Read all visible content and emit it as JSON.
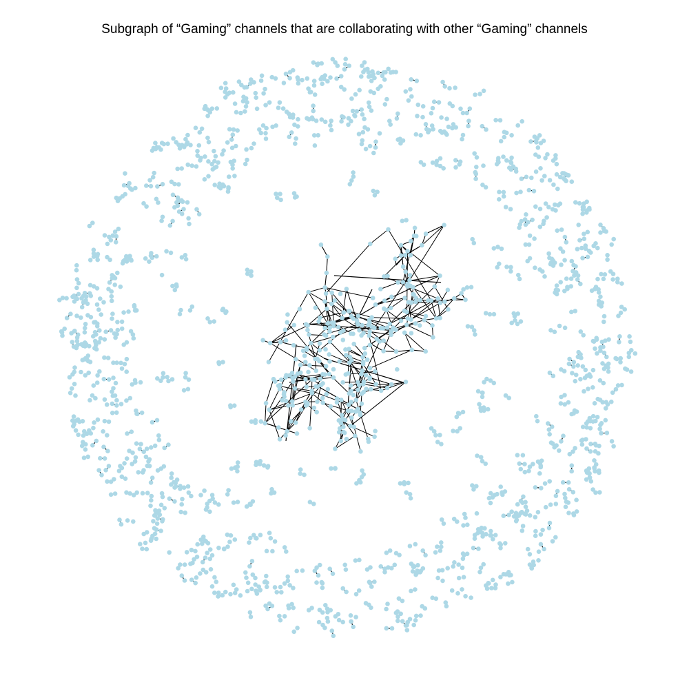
{
  "figure": {
    "title": "Subgraph of “Gaming” channels that are collaborating with other “Gaming” channels"
  },
  "style": {
    "node_color": "#add8e6",
    "edge_color": "#000000",
    "background": "#ffffff"
  },
  "graph": {
    "layout": "force-directed",
    "structure": "dense central connected component surrounded by a ring of many small disconnected components (mostly pairs)"
  }
}
